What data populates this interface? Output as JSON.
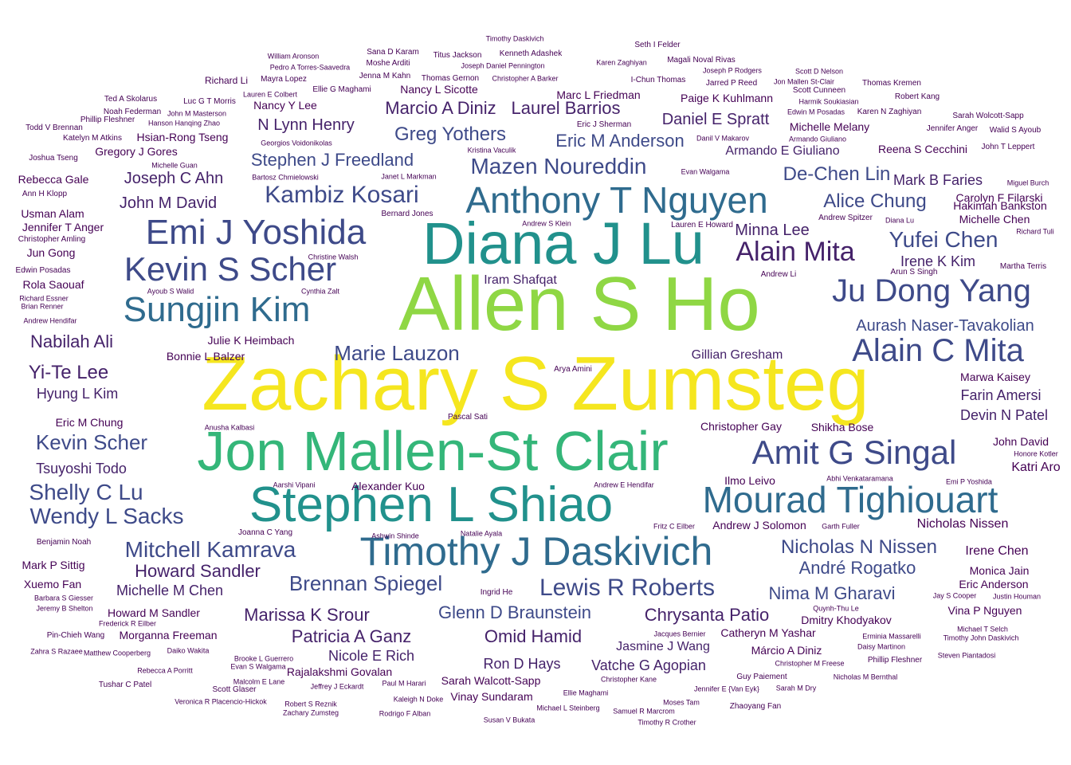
{
  "colors": {
    "yellow": "#f5e61f",
    "lime": "#8fd744",
    "green": "#34b679",
    "teal": "#21918c",
    "blue": "#2f6b8e",
    "indigo": "#3e4a89",
    "purple": "#45226a",
    "dark": "#440154"
  },
  "words": [
    {
      "text": "Zachary S Zumsteg",
      "size": 5,
      "color": "yellow"
    },
    {
      "text": "Allen S Ho",
      "size": 5,
      "color": "lime"
    },
    {
      "text": "Diana J Lu",
      "size": 4,
      "color": "teal"
    },
    {
      "text": "Jon Mallen-St Clair",
      "size": 4,
      "color": "green"
    },
    {
      "text": "Stephen L Shiao",
      "size": 4,
      "color": "teal"
    },
    {
      "text": "Timothy J Daskivich",
      "size": 3,
      "color": "blue"
    },
    {
      "text": "Anthony T Nguyen",
      "size": 3,
      "color": "blue"
    },
    {
      "text": "Mourad Tighiouart",
      "size": 3,
      "color": "blue"
    },
    {
      "text": "Emi J Yoshida",
      "size": 3,
      "color": "indigo"
    },
    {
      "text": "Kevin S Scher",
      "size": 3,
      "color": "indigo"
    },
    {
      "text": "Sungjin Kim",
      "size": 3,
      "color": "blue"
    },
    {
      "text": "Ju Dong Yang",
      "size": 3,
      "color": "indigo"
    },
    {
      "text": "Alain C Mita",
      "size": 3,
      "color": "indigo"
    },
    {
      "text": "Amit G Singal",
      "size": 3,
      "color": "indigo"
    },
    {
      "text": "Alain Mita",
      "size": 3,
      "color": "purple"
    },
    {
      "text": "Kambiz Kosari",
      "size": 2,
      "color": "indigo"
    },
    {
      "text": "Mazen Noureddin",
      "size": 2,
      "color": "indigo"
    },
    {
      "text": "Yufei Chen",
      "size": 2,
      "color": "indigo"
    },
    {
      "text": "Lewis R Roberts",
      "size": 2,
      "color": "indigo"
    },
    {
      "text": "Mitchell Kamrava",
      "size": 2,
      "color": "indigo"
    },
    {
      "text": "Nicholas N Nissen",
      "size": 2,
      "color": "indigo"
    },
    {
      "text": "Stephen J Freedland",
      "size": 2,
      "color": "indigo"
    },
    {
      "text": "Greg Yothers",
      "size": 2,
      "color": "indigo"
    },
    {
      "text": "Kevin Scher",
      "size": 2,
      "color": "indigo"
    },
    {
      "text": "Shelly C Lu",
      "size": 2,
      "color": "indigo"
    },
    {
      "text": "Wendy L Sacks",
      "size": 2,
      "color": "indigo"
    },
    {
      "text": "Brennan Spiegel",
      "size": 2,
      "color": "indigo"
    },
    {
      "text": "Marie Lauzon",
      "size": 2,
      "color": "indigo"
    },
    {
      "text": "Glenn D Braunstein",
      "size": 2,
      "color": "indigo"
    },
    {
      "text": "André Rogatko",
      "size": 2,
      "color": "indigo"
    },
    {
      "text": "Nima M Gharavi",
      "size": 2,
      "color": "indigo"
    },
    {
      "text": "Aurash Naser-Tavakolian",
      "size": 2,
      "color": "indigo"
    },
    {
      "text": "Eric M Anderson",
      "size": 2,
      "color": "indigo"
    },
    {
      "text": "De-Chen Lin",
      "size": 2,
      "color": "indigo"
    },
    {
      "text": "Alice Chung",
      "size": 2,
      "color": "indigo"
    },
    {
      "text": "Nabilah Ali",
      "size": 2,
      "color": "purple"
    },
    {
      "text": "Yi-Te Lee",
      "size": 2,
      "color": "purple"
    },
    {
      "text": "Marissa K Srour",
      "size": 2,
      "color": "purple"
    },
    {
      "text": "Omid Hamid",
      "size": 2,
      "color": "purple"
    },
    {
      "text": "Patricia A Ganz",
      "size": 2,
      "color": "purple"
    },
    {
      "text": "Chrysanta Patio",
      "size": 2,
      "color": "purple"
    },
    {
      "text": "Marcio A Diniz",
      "size": 2,
      "color": "purple"
    },
    {
      "text": "Laurel Barrios",
      "size": 2,
      "color": "purple"
    },
    {
      "text": "Howard Sandler",
      "size": 2,
      "color": "purple"
    },
    {
      "text": "John M David",
      "size": 2,
      "color": "purple"
    },
    {
      "text": "N Lynn Henry",
      "size": 2,
      "color": "purple"
    },
    {
      "text": "Joseph C Ahn",
      "size": 2,
      "color": "purple"
    },
    {
      "text": "Daniel E Spratt",
      "size": 2,
      "color": "purple"
    },
    {
      "text": "Minna Lee",
      "size": 2,
      "color": "purple"
    },
    {
      "text": "Mark B Faries",
      "size": 2,
      "color": "purple"
    },
    {
      "text": "Irene K Kim",
      "size": 2,
      "color": "purple"
    },
    {
      "text": "Armando E Giuliano",
      "size": 2,
      "color": "purple"
    },
    {
      "text": "Iram Shafqat",
      "size": 2,
      "color": "purple"
    },
    {
      "text": "Gillian Gresham",
      "size": 2,
      "color": "purple"
    },
    {
      "text": "Farin Amersi",
      "size": 2,
      "color": "purple"
    },
    {
      "text": "Devin N Patel",
      "size": 2,
      "color": "purple"
    },
    {
      "text": "Tsuyoshi Todo",
      "size": 2,
      "color": "purple"
    },
    {
      "text": "Hyung L Kim",
      "size": 2,
      "color": "purple"
    },
    {
      "text": "Michelle M Chen",
      "size": 2,
      "color": "purple"
    },
    {
      "text": "Jasmine J Wang",
      "size": 2,
      "color": "purple"
    },
    {
      "text": "Nicole E Rich",
      "size": 2,
      "color": "purple"
    },
    {
      "text": "Ron D Hays",
      "size": 2,
      "color": "purple"
    },
    {
      "text": "Vatche G Agopian",
      "size": 2,
      "color": "purple"
    },
    {
      "text": "Nicholas Nissen",
      "size": 1,
      "color": "dark"
    },
    {
      "text": "Irene Chen",
      "size": 1,
      "color": "dark"
    },
    {
      "text": "Monica Jain",
      "size": 1,
      "color": "dark"
    },
    {
      "text": "Eric Anderson",
      "size": 1,
      "color": "dark"
    },
    {
      "text": "Vina P Nguyen",
      "size": 1,
      "color": "dark"
    },
    {
      "text": "Dmitry Khodyakov",
      "size": 1,
      "color": "dark"
    },
    {
      "text": "Marwa Kaisey",
      "size": 1,
      "color": "dark"
    },
    {
      "text": "John David",
      "size": 1,
      "color": "dark"
    },
    {
      "text": "Katri Aro",
      "size": 1,
      "color": "dark"
    },
    {
      "text": "Shikha Bose",
      "size": 1,
      "color": "dark"
    },
    {
      "text": "Christopher Gay",
      "size": 1,
      "color": "dark"
    },
    {
      "text": "Ilmo Leivo",
      "size": 1,
      "color": "dark"
    },
    {
      "text": "Andrew J Solomon",
      "size": 1,
      "color": "dark"
    },
    {
      "text": "Carolyn F Filarski",
      "size": 1,
      "color": "dark"
    },
    {
      "text": "Michelle Chen",
      "size": 1,
      "color": "dark"
    },
    {
      "text": "Hakimah Bankston",
      "size": 1,
      "color": "dark"
    },
    {
      "text": "Reena S Cecchini",
      "size": 1,
      "color": "dark"
    },
    {
      "text": "Michelle Melany",
      "size": 1,
      "color": "dark"
    },
    {
      "text": "Paige K Kuhlmann",
      "size": 1,
      "color": "dark"
    },
    {
      "text": "Marc L Friedman",
      "size": 1,
      "color": "dark"
    },
    {
      "text": "Nancy L Sicotte",
      "size": 1,
      "color": "dark"
    },
    {
      "text": "Nancy Y Lee",
      "size": 1,
      "color": "dark"
    },
    {
      "text": "Hsian-Rong Tseng",
      "size": 1,
      "color": "dark"
    },
    {
      "text": "Gregory J Gores",
      "size": 1,
      "color": "dark"
    },
    {
      "text": "Rebecca Gale",
      "size": 1,
      "color": "dark"
    },
    {
      "text": "Usman Alam",
      "size": 1,
      "color": "dark"
    },
    {
      "text": "Jennifer T Anger",
      "size": 1,
      "color": "dark"
    },
    {
      "text": "Jun Gong",
      "size": 1,
      "color": "dark"
    },
    {
      "text": "Rola Saouaf",
      "size": 1,
      "color": "dark"
    },
    {
      "text": "Julie K Heimbach",
      "size": 1,
      "color": "dark"
    },
    {
      "text": "Bonnie L Balzer",
      "size": 1,
      "color": "dark"
    },
    {
      "text": "Eric M Chung",
      "size": 1,
      "color": "dark"
    },
    {
      "text": "Alexander Kuo",
      "size": 1,
      "color": "dark"
    },
    {
      "text": "Xuemo Fan",
      "size": 1,
      "color": "dark"
    },
    {
      "text": "Mark P Sittig",
      "size": 1,
      "color": "dark"
    },
    {
      "text": "Howard M Sandler",
      "size": 1,
      "color": "dark"
    },
    {
      "text": "Morganna Freeman",
      "size": 1,
      "color": "dark"
    },
    {
      "text": "Catheryn M Yashar",
      "size": 1,
      "color": "dark"
    },
    {
      "text": "Márcio A Diniz",
      "size": 1,
      "color": "dark"
    },
    {
      "text": "Rajalakshmi Govalan",
      "size": 1,
      "color": "dark"
    },
    {
      "text": "Sarah Walcott-Sapp",
      "size": 1,
      "color": "dark"
    },
    {
      "text": "Vinay Sundaram",
      "size": 1,
      "color": "dark"
    },
    {
      "text": "Richard Li",
      "size": 0,
      "color": "dark"
    },
    {
      "text": "Mayra Lopez",
      "size": 0,
      "color": "dark"
    },
    {
      "text": "William Aronson",
      "size": 0,
      "color": "dark"
    },
    {
      "text": "Pedro A Torres-Saavedra",
      "size": 0,
      "color": "dark"
    },
    {
      "text": "Moshe Arditi",
      "size": 0,
      "color": "dark"
    },
    {
      "text": "Sana D Karam",
      "size": 0,
      "color": "dark"
    },
    {
      "text": "Titus Jackson",
      "size": 0,
      "color": "dark"
    },
    {
      "text": "Kenneth Adashek",
      "size": 0,
      "color": "dark"
    },
    {
      "text": "Timothy Daskivich",
      "size": 0,
      "color": "dark"
    },
    {
      "text": "Joseph Daniel Pennington",
      "size": 0,
      "color": "dark"
    },
    {
      "text": "Christopher A Barker",
      "size": 0,
      "color": "dark"
    },
    {
      "text": "Thomas Gernon",
      "size": 0,
      "color": "dark"
    },
    {
      "text": "Jenna M Kahn",
      "size": 0,
      "color": "dark"
    },
    {
      "text": "Ellie G Maghami",
      "size": 0,
      "color": "dark"
    },
    {
      "text": "Lauren E Colbert",
      "size": 0,
      "color": "dark"
    },
    {
      "text": "Luc G T Morris",
      "size": 0,
      "color": "dark"
    },
    {
      "text": "Ted A Skolarus",
      "size": 0,
      "color": "dark"
    },
    {
      "text": "Noah Federman",
      "size": 0,
      "color": "dark"
    },
    {
      "text": "John M Masterson",
      "size": 0,
      "color": "dark"
    },
    {
      "text": "Phillip Fleshner",
      "size": 0,
      "color": "dark"
    },
    {
      "text": "Hanson Hanqing Zhao",
      "size": 0,
      "color": "dark"
    },
    {
      "text": "Todd V Brennan",
      "size": 0,
      "color": "dark"
    },
    {
      "text": "Katelyn M Atkins",
      "size": 0,
      "color": "dark"
    },
    {
      "text": "Michelle Guan",
      "size": 0,
      "color": "dark"
    },
    {
      "text": "Georgios Voidonikolas",
      "size": 0,
      "color": "dark"
    },
    {
      "text": "Joshua Tseng",
      "size": 0,
      "color": "dark"
    },
    {
      "text": "Bartosz Chmielowski",
      "size": 0,
      "color": "dark"
    },
    {
      "text": "Janet L Markman",
      "size": 0,
      "color": "dark"
    },
    {
      "text": "Kristina Vaculik",
      "size": 0,
      "color": "dark"
    },
    {
      "text": "Ann H Klopp",
      "size": 0,
      "color": "dark"
    },
    {
      "text": "Bernard Jones",
      "size": 0,
      "color": "dark"
    },
    {
      "text": "Andrew S Klein",
      "size": 0,
      "color": "dark"
    },
    {
      "text": "Christopher Amling",
      "size": 0,
      "color": "dark"
    },
    {
      "text": "Christine Walsh",
      "size": 0,
      "color": "dark"
    },
    {
      "text": "Edwin Posadas",
      "size": 0,
      "color": "dark"
    },
    {
      "text": "Ayoub S Walid",
      "size": 0,
      "color": "dark"
    },
    {
      "text": "Cynthia Zalt",
      "size": 0,
      "color": "dark"
    },
    {
      "text": "Richard Essner",
      "size": 0,
      "color": "dark"
    },
    {
      "text": "Brian Renner",
      "size": 0,
      "color": "dark"
    },
    {
      "text": "Andrew Hendifar",
      "size": 0,
      "color": "dark"
    },
    {
      "text": "Arya Amini",
      "size": 0,
      "color": "dark"
    },
    {
      "text": "Pascal Sati",
      "size": 0,
      "color": "dark"
    },
    {
      "text": "Anusha Kalbasi",
      "size": 0,
      "color": "dark"
    },
    {
      "text": "Aarshi Vipani",
      "size": 0,
      "color": "dark"
    },
    {
      "text": "Andrew E Hendifar",
      "size": 0,
      "color": "dark"
    },
    {
      "text": "Abhi Venkataramana",
      "size": 0,
      "color": "dark"
    },
    {
      "text": "Emi P Yoshida",
      "size": 0,
      "color": "dark"
    },
    {
      "text": "Honore Kotler",
      "size": 0,
      "color": "dark"
    },
    {
      "text": "Joanna C Yang",
      "size": 0,
      "color": "dark"
    },
    {
      "text": "Ashwin Shinde",
      "size": 0,
      "color": "dark"
    },
    {
      "text": "Natalie Ayala",
      "size": 0,
      "color": "dark"
    },
    {
      "text": "Fritz C Eilber",
      "size": 0,
      "color": "dark"
    },
    {
      "text": "Garth Fuller",
      "size": 0,
      "color": "dark"
    },
    {
      "text": "Benjamin Noah",
      "size": 0,
      "color": "dark"
    },
    {
      "text": "Ingrid He",
      "size": 0,
      "color": "dark"
    },
    {
      "text": "Barbara S Giesser",
      "size": 0,
      "color": "dark"
    },
    {
      "text": "Jeremy B Shelton",
      "size": 0,
      "color": "dark"
    },
    {
      "text": "Frederick R Eilber",
      "size": 0,
      "color": "dark"
    },
    {
      "text": "Pin-Chieh Wang",
      "size": 0,
      "color": "dark"
    },
    {
      "text": "Zahra S Razaee",
      "size": 0,
      "color": "dark"
    },
    {
      "text": "Matthew Cooperberg",
      "size": 0,
      "color": "dark"
    },
    {
      "text": "Daiko Wakita",
      "size": 0,
      "color": "dark"
    },
    {
      "text": "Rebecca A Porritt",
      "size": 0,
      "color": "dark"
    },
    {
      "text": "Brooke L Guerrero",
      "size": 0,
      "color": "dark"
    },
    {
      "text": "Evan S Walgama",
      "size": 0,
      "color": "dark"
    },
    {
      "text": "Tushar C Patel",
      "size": 0,
      "color": "dark"
    },
    {
      "text": "Scott Glaser",
      "size": 0,
      "color": "dark"
    },
    {
      "text": "Malcolm E Lane",
      "size": 0,
      "color": "dark"
    },
    {
      "text": "Jeffrey J Eckardt",
      "size": 0,
      "color": "dark"
    },
    {
      "text": "Paul M Harari",
      "size": 0,
      "color": "dark"
    },
    {
      "text": "Veronica R Placencio-Hickok",
      "size": 0,
      "color": "dark"
    },
    {
      "text": "Robert S Reznik",
      "size": 0,
      "color": "dark"
    },
    {
      "text": "Zachary Zumsteg",
      "size": 0,
      "color": "dark"
    },
    {
      "text": "Kaleigh N Doke",
      "size": 0,
      "color": "dark"
    },
    {
      "text": "Rodrigo F Alban",
      "size": 0,
      "color": "dark"
    },
    {
      "text": "Ellie Maghami",
      "size": 0,
      "color": "dark"
    },
    {
      "text": "Michael L Steinberg",
      "size": 0,
      "color": "dark"
    },
    {
      "text": "Susan V Bukata",
      "size": 0,
      "color": "dark"
    },
    {
      "text": "Christopher Kane",
      "size": 0,
      "color": "dark"
    },
    {
      "text": "Moses Tam",
      "size": 0,
      "color": "dark"
    },
    {
      "text": "Samuel R Marcrom",
      "size": 0,
      "color": "dark"
    },
    {
      "text": "Timothy R Crother",
      "size": 0,
      "color": "dark"
    },
    {
      "text": "Jennifer E {Van Eyk}",
      "size": 0,
      "color": "dark"
    },
    {
      "text": "Sarah M Dry",
      "size": 0,
      "color": "dark"
    },
    {
      "text": "Zhaoyang Fan",
      "size": 0,
      "color": "dark"
    },
    {
      "text": "Guy Paiement",
      "size": 0,
      "color": "dark"
    },
    {
      "text": "Christopher M Freese",
      "size": 0,
      "color": "dark"
    },
    {
      "text": "Nicholas M Bernthal",
      "size": 0,
      "color": "dark"
    },
    {
      "text": "Jacques Bernier",
      "size": 0,
      "color": "dark"
    },
    {
      "text": "Erminia Massarelli",
      "size": 0,
      "color": "dark"
    },
    {
      "text": "Daisy Martinon",
      "size": 0,
      "color": "dark"
    },
    {
      "text": "Phillip Fleshner",
      "size": 0,
      "color": "dark"
    },
    {
      "text": "Steven Piantadosi",
      "size": 0,
      "color": "dark"
    },
    {
      "text": "Michael T Selch",
      "size": 0,
      "color": "dark"
    },
    {
      "text": "Timothy John Daskivich",
      "size": 0,
      "color": "dark"
    },
    {
      "text": "Quynh-Thu Le",
      "size": 0,
      "color": "dark"
    },
    {
      "text": "Jay S Cooper",
      "size": 0,
      "color": "dark"
    },
    {
      "text": "Justin Houman",
      "size": 0,
      "color": "dark"
    },
    {
      "text": "Seth I Felder",
      "size": 0,
      "color": "dark"
    },
    {
      "text": "Karen Zaghiyan",
      "size": 0,
      "color": "dark"
    },
    {
      "text": "Magali Noval Rivas",
      "size": 0,
      "color": "dark"
    },
    {
      "text": "Joseph P Rodgers",
      "size": 0,
      "color": "dark"
    },
    {
      "text": "Scott D Nelson",
      "size": 0,
      "color": "dark"
    },
    {
      "text": "I-Chun Thomas",
      "size": 0,
      "color": "dark"
    },
    {
      "text": "Jarred P Reed",
      "size": 0,
      "color": "dark"
    },
    {
      "text": "Jon Mallen St-Clair",
      "size": 0,
      "color": "dark"
    },
    {
      "text": "Thomas Kremen",
      "size": 0,
      "color": "dark"
    },
    {
      "text": "Scott Cunneen",
      "size": 0,
      "color": "dark"
    },
    {
      "text": "Robert Kang",
      "size": 0,
      "color": "dark"
    },
    {
      "text": "Harmik Soukiasian",
      "size": 0,
      "color": "dark"
    },
    {
      "text": "Edwin M Posadas",
      "size": 0,
      "color": "dark"
    },
    {
      "text": "Karen N Zaghiyan",
      "size": 0,
      "color": "dark"
    },
    {
      "text": "Sarah Wolcott-Sapp",
      "size": 0,
      "color": "dark"
    },
    {
      "text": "Eric J Sherman",
      "size": 0,
      "color": "dark"
    },
    {
      "text": "Jennifer Anger",
      "size": 0,
      "color": "dark"
    },
    {
      "text": "Walid S Ayoub",
      "size": 0,
      "color": "dark"
    },
    {
      "text": "Danil V Makarov",
      "size": 0,
      "color": "dark"
    },
    {
      "text": "Armando Giuliano",
      "size": 0,
      "color": "dark"
    },
    {
      "text": "John T Leppert",
      "size": 0,
      "color": "dark"
    },
    {
      "text": "Evan Walgama",
      "size": 0,
      "color": "dark"
    },
    {
      "text": "Miguel Burch",
      "size": 0,
      "color": "dark"
    },
    {
      "text": "Andrew Spitzer",
      "size": 0,
      "color": "dark"
    },
    {
      "text": "Diana Lu",
      "size": 0,
      "color": "dark"
    },
    {
      "text": "Richard Tuli",
      "size": 0,
      "color": "dark"
    },
    {
      "text": "Lauren E Howard",
      "size": 0,
      "color": "dark"
    },
    {
      "text": "Martha Terris",
      "size": 0,
      "color": "dark"
    },
    {
      "text": "Arun S Singh",
      "size": 0,
      "color": "dark"
    },
    {
      "text": "Andrew Li",
      "size": 0,
      "color": "dark"
    }
  ]
}
